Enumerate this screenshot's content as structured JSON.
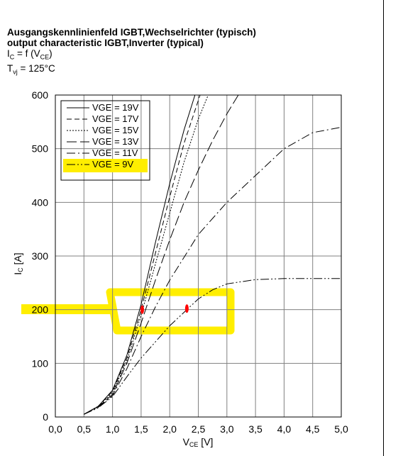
{
  "header": {
    "title_de": "Ausgangskennlinienfeld IGBT,Wechselrichter (typisch)",
    "title_en": "output characteristic IGBT,Inverter (typical)",
    "formula1": "IC = f (VCE)",
    "formula2": "Tvj = 125°C"
  },
  "chart_data": {
    "type": "line",
    "title": "Ausgangskennlinienfeld IGBT,Wechselrichter (typisch) / output characteristic IGBT,Inverter (typical)",
    "xlabel": "VCE [V]",
    "ylabel": "IC [A]",
    "xlim": [
      0,
      5
    ],
    "ylim": [
      0,
      600
    ],
    "x_ticks": [
      "0,0",
      "0,5",
      "1,0",
      "1,5",
      "2,0",
      "2,5",
      "3,0",
      "3,5",
      "4,0",
      "4,5",
      "5,0"
    ],
    "y_ticks": [
      "0",
      "100",
      "200",
      "300",
      "400",
      "500",
      "600"
    ],
    "grid": true,
    "legend_position": "top-left",
    "series": [
      {
        "name": "VGE = 19V",
        "dash": "solid",
        "points": [
          [
            0.5,
            5
          ],
          [
            0.75,
            20
          ],
          [
            1.0,
            50
          ],
          [
            1.25,
            115
          ],
          [
            1.5,
            210
          ],
          [
            1.75,
            325
          ],
          [
            2.0,
            435
          ],
          [
            2.25,
            535
          ],
          [
            2.5,
            620
          ]
        ]
      },
      {
        "name": "VGE = 17V",
        "dash": "dash",
        "points": [
          [
            0.5,
            5
          ],
          [
            0.75,
            20
          ],
          [
            1.0,
            48
          ],
          [
            1.25,
            110
          ],
          [
            1.5,
            200
          ],
          [
            1.75,
            305
          ],
          [
            2.0,
            410
          ],
          [
            2.25,
            510
          ],
          [
            2.5,
            590
          ],
          [
            2.65,
            640
          ]
        ]
      },
      {
        "name": "VGE = 15V",
        "dash": "dot",
        "points": [
          [
            0.5,
            5
          ],
          [
            0.75,
            20
          ],
          [
            1.0,
            45
          ],
          [
            1.25,
            105
          ],
          [
            1.5,
            190
          ],
          [
            1.75,
            285
          ],
          [
            2.0,
            380
          ],
          [
            2.25,
            475
          ],
          [
            2.5,
            555
          ],
          [
            2.75,
            620
          ]
        ]
      },
      {
        "name": "VGE = 13V",
        "dash": "longdash",
        "points": [
          [
            0.5,
            5
          ],
          [
            0.75,
            19
          ],
          [
            1.0,
            42
          ],
          [
            1.25,
            100
          ],
          [
            1.5,
            175
          ],
          [
            1.75,
            255
          ],
          [
            2.0,
            330
          ],
          [
            2.25,
            400
          ],
          [
            2.5,
            460
          ],
          [
            2.75,
            515
          ],
          [
            3.0,
            565
          ],
          [
            3.2,
            600
          ]
        ]
      },
      {
        "name": "VGE = 11V",
        "dash": "dashdot",
        "points": [
          [
            0.5,
            5
          ],
          [
            0.75,
            18
          ],
          [
            1.0,
            40
          ],
          [
            1.25,
            90
          ],
          [
            1.5,
            150
          ],
          [
            1.75,
            205
          ],
          [
            2.0,
            255
          ],
          [
            2.5,
            340
          ],
          [
            3.0,
            400
          ],
          [
            3.5,
            450
          ],
          [
            4.0,
            500
          ],
          [
            4.5,
            530
          ],
          [
            5.0,
            540
          ]
        ]
      },
      {
        "name": "VGE = 9V",
        "dash": "dashdotdot",
        "points": [
          [
            0.5,
            5
          ],
          [
            0.75,
            17
          ],
          [
            1.0,
            38
          ],
          [
            1.25,
            75
          ],
          [
            1.5,
            110
          ],
          [
            1.75,
            140
          ],
          [
            2.0,
            170
          ],
          [
            2.25,
            195
          ],
          [
            2.5,
            220
          ],
          [
            2.75,
            237
          ],
          [
            3.0,
            248
          ],
          [
            3.5,
            256
          ],
          [
            4.0,
            258
          ],
          [
            4.5,
            258
          ],
          [
            5.0,
            258
          ]
        ]
      }
    ],
    "annotations": [
      {
        "type": "highlight",
        "target": "legend",
        "series": "VGE = 9V",
        "color": "#ffee00"
      },
      {
        "type": "highlight",
        "target": "line",
        "y": 200,
        "color": "#ffee00"
      },
      {
        "type": "marker",
        "x": 1.52,
        "y": 200,
        "color": "#ff0000"
      },
      {
        "type": "marker",
        "x": 2.3,
        "y": 202,
        "color": "#ff0000"
      }
    ]
  },
  "colors": {
    "highlight": "#ffee00",
    "marker": "#ff0000",
    "line": "#000000",
    "grid": "#808080"
  }
}
